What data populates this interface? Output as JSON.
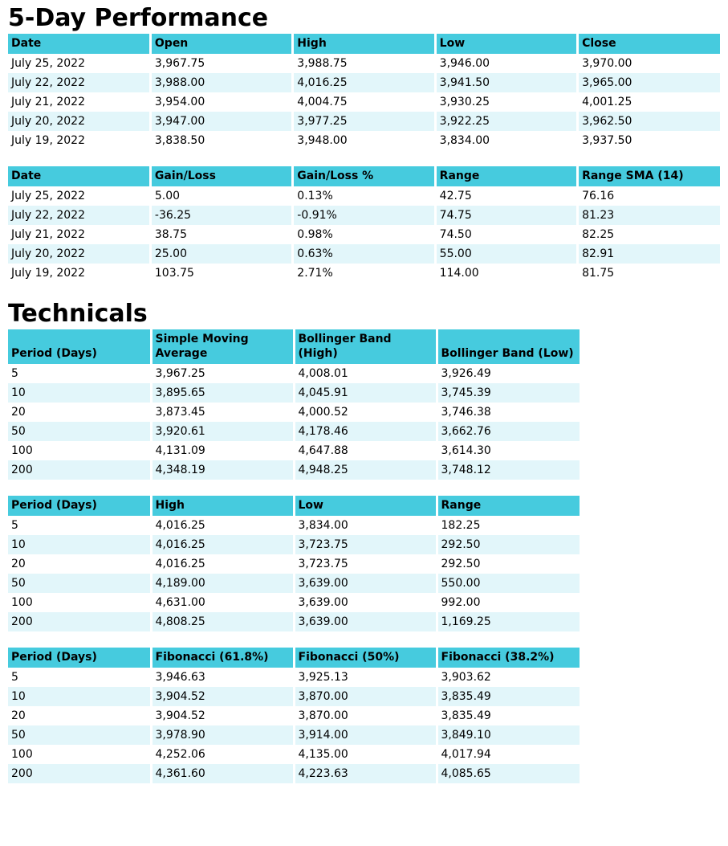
{
  "sections": [
    {
      "title": "5-Day Performance"
    },
    {
      "title": "Technicals"
    }
  ],
  "tables": [
    {
      "name": "five-day-ohlc",
      "headers": [
        "Date",
        "Open",
        "High",
        "Low",
        "Close"
      ],
      "rows": [
        [
          "July 25, 2022",
          "3,967.75",
          "3,988.75",
          "3,946.00",
          "3,970.00"
        ],
        [
          "July 22, 2022",
          "3,988.00",
          "4,016.25",
          "3,941.50",
          "3,965.00"
        ],
        [
          "July 21, 2022",
          "3,954.00",
          "4,004.75",
          "3,930.25",
          "4,001.25"
        ],
        [
          "July 20, 2022",
          "3,947.00",
          "3,977.25",
          "3,922.25",
          "3,962.50"
        ],
        [
          "July 19, 2022",
          "3,838.50",
          "3,948.00",
          "3,834.00",
          "3,937.50"
        ]
      ]
    },
    {
      "name": "five-day-gain-loss",
      "headers": [
        "Date",
        "Gain/Loss",
        "Gain/Loss %",
        "Range",
        "Range SMA (14)"
      ],
      "rows": [
        [
          "July 25, 2022",
          "5.00",
          "0.13%",
          "42.75",
          "76.16"
        ],
        [
          "July 22, 2022",
          "-36.25",
          "-0.91%",
          "74.75",
          "81.23"
        ],
        [
          "July 21, 2022",
          "38.75",
          "0.98%",
          "74.50",
          "82.25"
        ],
        [
          "July 20, 2022",
          "25.00",
          "0.63%",
          "55.00",
          "82.91"
        ],
        [
          "July 19, 2022",
          "103.75",
          "2.71%",
          "114.00",
          "81.75"
        ]
      ]
    },
    {
      "name": "sma-bollinger",
      "headers": [
        "Period (Days)",
        "Simple Moving Average",
        "Bollinger Band (High)",
        "Bollinger Band (Low)"
      ],
      "rows": [
        [
          "5",
          "3,967.25",
          "4,008.01",
          "3,926.49"
        ],
        [
          "10",
          "3,895.65",
          "4,045.91",
          "3,745.39"
        ],
        [
          "20",
          "3,873.45",
          "4,000.52",
          "3,746.38"
        ],
        [
          "50",
          "3,920.61",
          "4,178.46",
          "3,662.76"
        ],
        [
          "100",
          "4,131.09",
          "4,647.88",
          "3,614.30"
        ],
        [
          "200",
          "4,348.19",
          "4,948.25",
          "3,748.12"
        ]
      ]
    },
    {
      "name": "high-low-range",
      "headers": [
        "Period (Days)",
        "High",
        "Low",
        "Range"
      ],
      "rows": [
        [
          "5",
          "4,016.25",
          "3,834.00",
          "182.25"
        ],
        [
          "10",
          "4,016.25",
          "3,723.75",
          "292.50"
        ],
        [
          "20",
          "4,016.25",
          "3,723.75",
          "292.50"
        ],
        [
          "50",
          "4,189.00",
          "3,639.00",
          "550.00"
        ],
        [
          "100",
          "4,631.00",
          "3,639.00",
          "992.00"
        ],
        [
          "200",
          "4,808.25",
          "3,639.00",
          "1,169.25"
        ]
      ]
    },
    {
      "name": "fibonacci",
      "headers": [
        "Period (Days)",
        "Fibonacci (61.8%)",
        "Fibonacci (50%)",
        "Fibonacci (38.2%)"
      ],
      "rows": [
        [
          "5",
          "3,946.63",
          "3,925.13",
          "3,903.62"
        ],
        [
          "10",
          "3,904.52",
          "3,870.00",
          "3,835.49"
        ],
        [
          "20",
          "3,904.52",
          "3,870.00",
          "3,835.49"
        ],
        [
          "50",
          "3,978.90",
          "3,914.00",
          "3,849.10"
        ],
        [
          "100",
          "4,252.06",
          "4,135.00",
          "4,017.94"
        ],
        [
          "200",
          "4,361.60",
          "4,223.63",
          "4,085.65"
        ]
      ]
    }
  ],
  "colors": {
    "header_bg": "#46CBDE",
    "row_alt_bg": "#E2F6FA",
    "row_bg": "#FFFFFF",
    "text": "#000000"
  }
}
